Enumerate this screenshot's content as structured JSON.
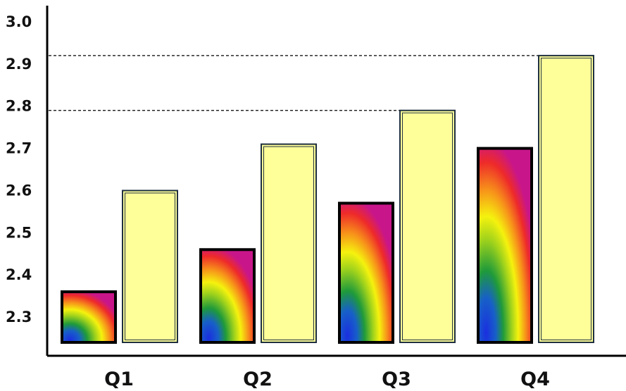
{
  "chart_data": {
    "type": "bar",
    "title": "",
    "xlabel": "",
    "ylabel": "",
    "categories": [
      "Q1",
      "Q2",
      "Q3",
      "Q4"
    ],
    "series": [
      {
        "values": [
          2.36,
          2.46,
          2.57,
          2.7
        ],
        "fill": "rainbow-gradient",
        "stroke": "#000000"
      },
      {
        "values": [
          2.6,
          2.71,
          2.79,
          2.92
        ],
        "fill": "#ffff99",
        "stroke": "#1f3040"
      }
    ],
    "ylim": [
      2.24,
      3.0
    ],
    "yticks": [
      "2.3",
      "2.4",
      "2.5",
      "2.6",
      "2.7",
      "2.8",
      "2.9",
      "3.0"
    ],
    "reference_lines": [
      2.79,
      2.92
    ],
    "grid": false,
    "legend": "none"
  }
}
